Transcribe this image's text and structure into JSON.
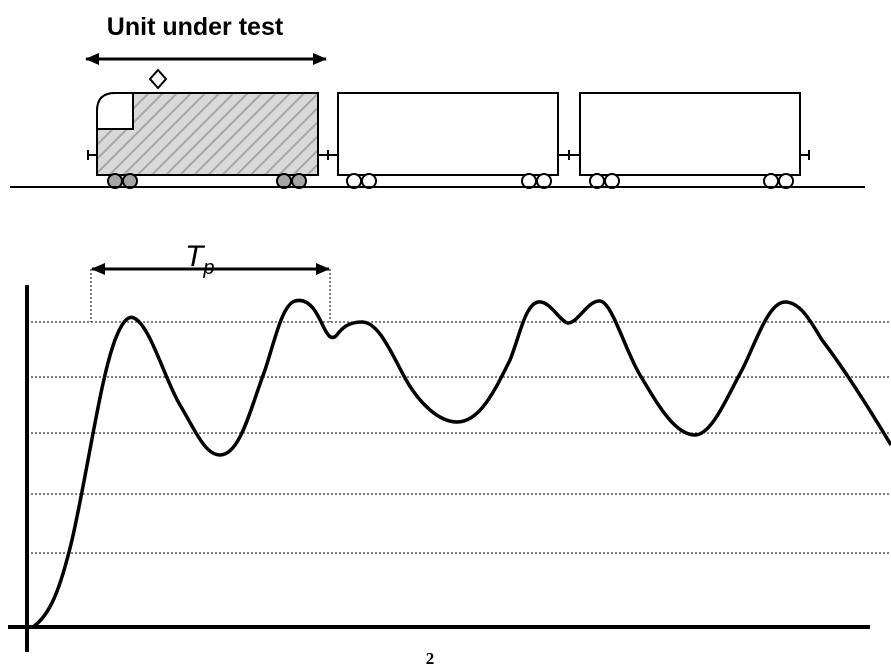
{
  "header": {
    "title": "Unit under test"
  },
  "period_label": {
    "main": "T",
    "sub": "p"
  },
  "footer": {
    "page_number": "2"
  }
}
